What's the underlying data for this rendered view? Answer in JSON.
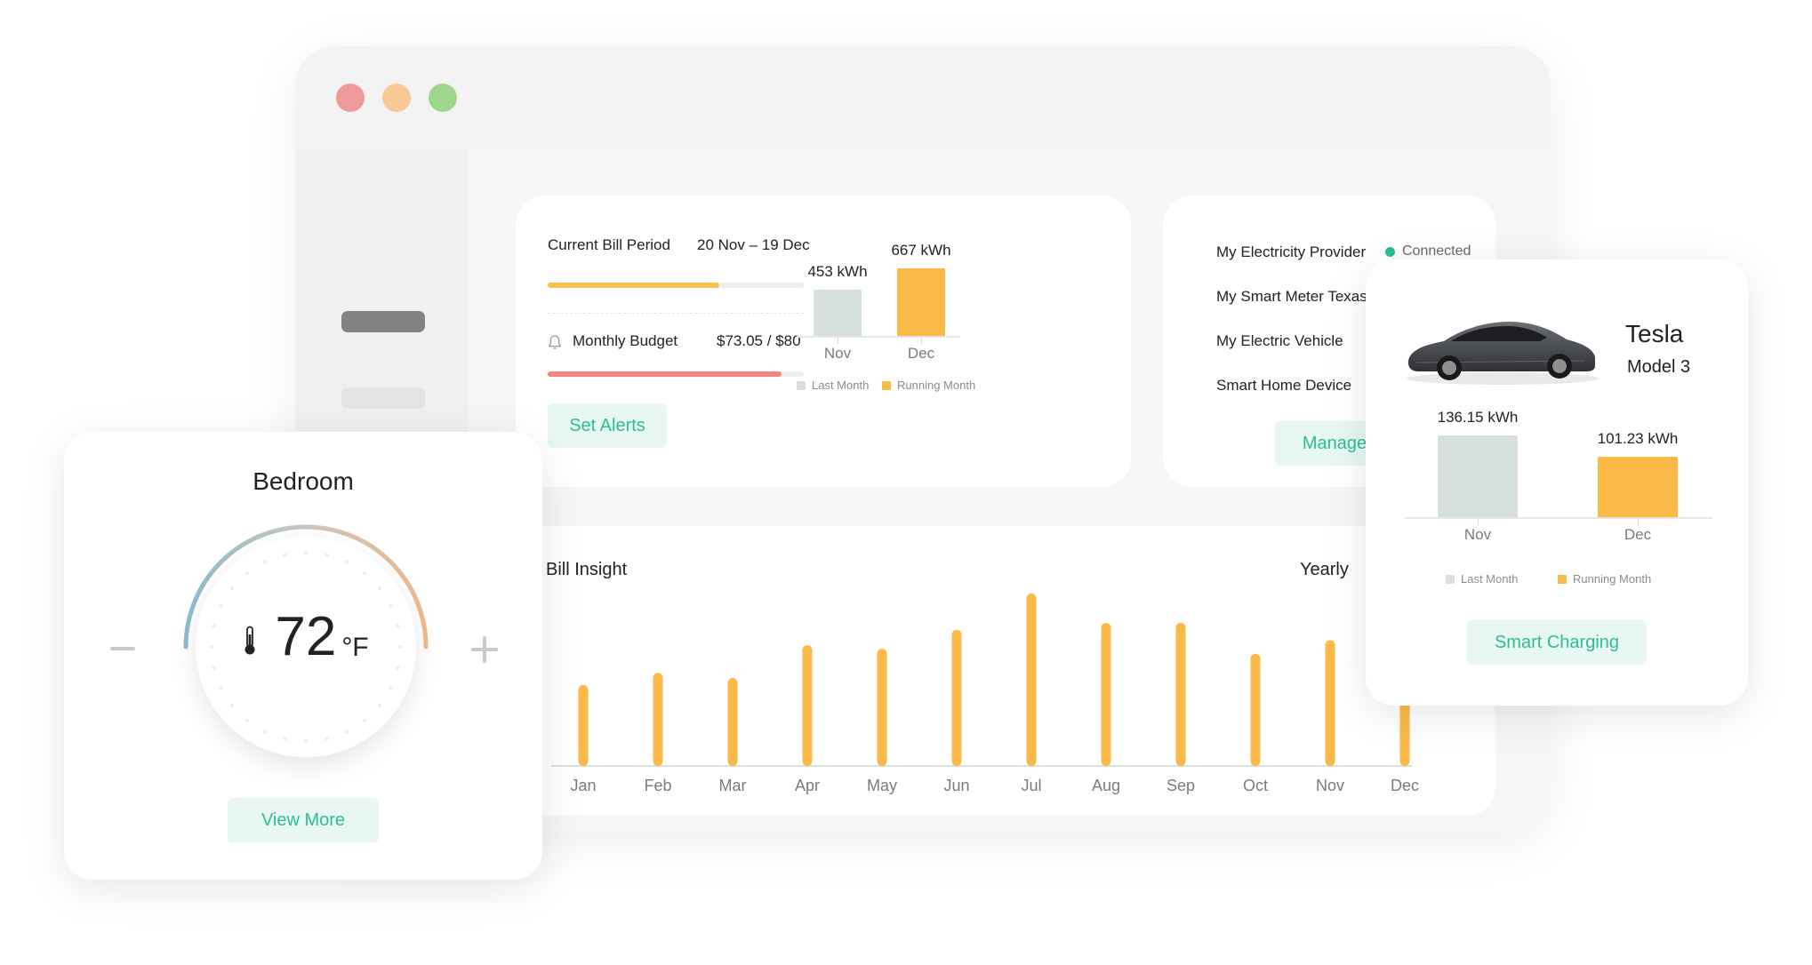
{
  "bill_card": {
    "period_label": "Current Bill Period",
    "period_value": "20 Nov – 19 Dec",
    "period_progress": 0.67,
    "budget_label": "Monthly Budget",
    "budget_value": "$73.05 / $80",
    "budget_progress": 0.913,
    "alerts_button": "Set Alerts",
    "icon": "bell-icon"
  },
  "provider_card": {
    "items": [
      "My Electricity Provider",
      "My Smart Meter Texas",
      "My Electric Vehicle",
      "Smart Home Device"
    ],
    "status": "Connected",
    "status_color": "#2ebc97",
    "manage_button": "Manage"
  },
  "thermostat": {
    "room": "Bedroom",
    "temperature": "72",
    "unit": "°F",
    "view_more_button": "View More",
    "icons": [
      "minus-icon",
      "plus-icon",
      "thermometer-icon"
    ]
  },
  "tesla": {
    "brand": "Tesla",
    "model": "Model 3",
    "smart_charging_button": "Smart Charging",
    "icon": "car-icon"
  },
  "insight": {
    "title": "Bill Insight",
    "period": "Yearly"
  },
  "colors": {
    "accent_green": "#2ebc97",
    "button_bg": "#e9f7f3",
    "bar_orange": "#fbb947",
    "bar_gray": "#d8e0db",
    "progress_yellow": "#f9c24e",
    "progress_red": "#f3857a"
  },
  "chart_data": [
    {
      "type": "bar",
      "categories": [
        "Nov",
        "Dec"
      ],
      "values": [
        453,
        667
      ],
      "value_labels": [
        "453 kWh",
        "667 kWh"
      ],
      "legend": [
        "Last Month",
        "Running Month"
      ],
      "legend_placement": "bottom",
      "ylim": [
        0,
        760
      ]
    },
    {
      "type": "bar",
      "categories": [
        "Nov",
        "Dec"
      ],
      "values": [
        136.15,
        101.23
      ],
      "value_labels": [
        "136.15 kWh",
        "101.23 kWh"
      ],
      "legend": [
        "Last Month",
        "Running Month"
      ],
      "legend_placement": "bottom",
      "ylim": [
        0,
        150
      ]
    },
    {
      "type": "bar",
      "title": "Bill Insight",
      "categories": [
        "Jan",
        "Feb",
        "Mar",
        "Apr",
        "May",
        "Jun",
        "Jul",
        "Aug",
        "Sep",
        "Oct",
        "Nov",
        "Dec"
      ],
      "values": [
        47,
        54,
        51,
        70,
        68,
        79,
        100,
        83,
        83,
        65,
        73,
        60
      ],
      "ylim": [
        0,
        100
      ],
      "grid": false
    }
  ]
}
